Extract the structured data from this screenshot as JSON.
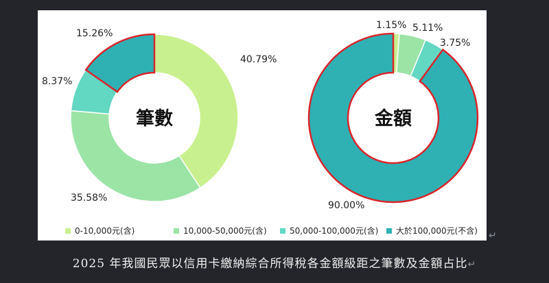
{
  "caption": "2025 年我國民眾以信用卡繳納綜合所得稅各金額級距之筆數及金額占比",
  "return_mark": "↵",
  "chart_data": [
    {
      "type": "pie",
      "center_label": "筆數",
      "categories": [
        "0-10,000元(含)",
        "10,000-50,000元(含)",
        "50,000-100,000元(含)",
        "大於100,000元(不含)"
      ],
      "values": [
        40.79,
        35.58,
        8.37,
        15.26
      ],
      "value_labels": [
        "40.79%",
        "35.58%",
        "8.37%",
        "15.26%"
      ],
      "colors": [
        "#c9f08e",
        "#9be4a6",
        "#62d7c2",
        "#2fb1b4"
      ],
      "highlight": 3
    },
    {
      "type": "pie",
      "center_label": "金額",
      "categories": [
        "0-10,000元(含)",
        "10,000-50,000元(含)",
        "50,000-100,000元(含)",
        "大於100,000元(不含)"
      ],
      "values": [
        1.15,
        5.11,
        3.75,
        90.0
      ],
      "value_labels": [
        "1.15%",
        "5.11%",
        "3.75%",
        "90.00%"
      ],
      "colors": [
        "#c9f08e",
        "#9be4a6",
        "#62d7c2",
        "#2fb1b4"
      ],
      "highlight": 3
    }
  ],
  "legend": [
    {
      "label": "0-10,000元(含)",
      "color": "#c9f08e"
    },
    {
      "label": "10,000-50,000元(含)",
      "color": "#9be4a6"
    },
    {
      "label": "50,000-100,000元(含)",
      "color": "#62d7c2"
    },
    {
      "label": "大於100,000元(不含)",
      "color": "#2fb1b4"
    }
  ]
}
